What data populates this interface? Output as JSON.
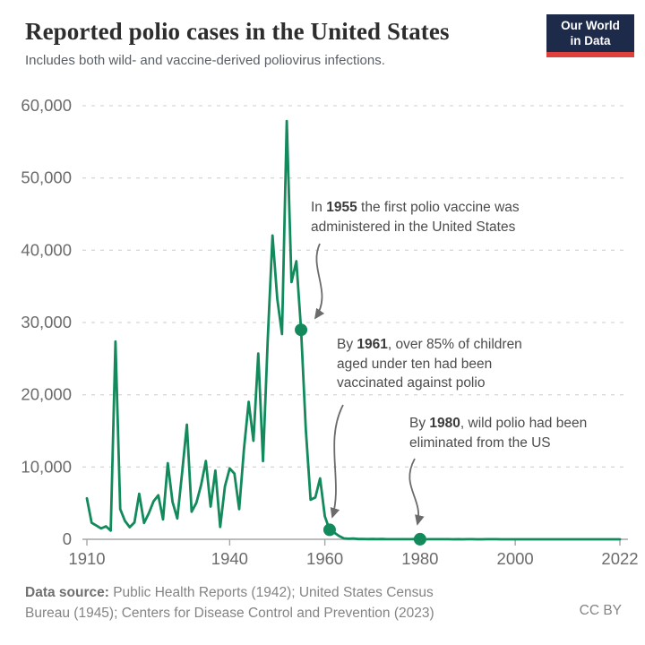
{
  "header": {
    "title": "Reported polio cases in the United States",
    "subtitle": "Includes both wild- and vaccine-derived poliovirus infections.",
    "logo_line1": "Our World",
    "logo_line2": "in Data"
  },
  "chart_data": {
    "type": "line",
    "title": "Reported polio cases in the United States",
    "xlabel": "",
    "ylabel": "",
    "xlim": [
      1910,
      2022
    ],
    "ylim": [
      0,
      60000
    ],
    "grid": "horizontal dashed",
    "legend": "none",
    "line_color": "#128a5c",
    "x": [
      1910,
      1911,
      1912,
      1913,
      1914,
      1915,
      1916,
      1917,
      1918,
      1919,
      1920,
      1921,
      1922,
      1923,
      1924,
      1925,
      1926,
      1927,
      1928,
      1929,
      1930,
      1931,
      1932,
      1933,
      1934,
      1935,
      1936,
      1937,
      1938,
      1939,
      1940,
      1941,
      1942,
      1943,
      1944,
      1945,
      1946,
      1947,
      1948,
      1949,
      1950,
      1951,
      1952,
      1953,
      1954,
      1955,
      1956,
      1957,
      1958,
      1959,
      1960,
      1961,
      1962,
      1963,
      1964,
      1965,
      1966,
      1967,
      1968,
      1969,
      1970,
      1971,
      1972,
      1973,
      1974,
      1975,
      1976,
      1977,
      1978,
      1979,
      1980,
      1981,
      1982,
      1983,
      1984,
      1985,
      1986,
      1987,
      1988,
      1989,
      1990,
      1991,
      1992,
      1993,
      1994,
      1995,
      1996,
      1997,
      1998,
      1999,
      2000,
      2001,
      2002,
      2003,
      2004,
      2005,
      2006,
      2007,
      2008,
      2009,
      2010,
      2011,
      2012,
      2013,
      2014,
      2015,
      2016,
      2017,
      2018,
      2019,
      2020,
      2021,
      2022
    ],
    "values": [
      5662,
      2286,
      1900,
      1500,
      1800,
      1200,
      27363,
      4174,
      2543,
      1672,
      2338,
      6301,
      2255,
      3589,
      5262,
      6104,
      2750,
      10533,
      5169,
      2882,
      9220,
      15872,
      3820,
      5043,
      7510,
      10839,
      4523,
      9514,
      1705,
      7343,
      9804,
      9086,
      4167,
      12450,
      19029,
      13624,
      25698,
      10827,
      27726,
      42033,
      33300,
      28386,
      57879,
      35592,
      38476,
      28985,
      15140,
      5485,
      5787,
      8425,
      3190,
      1312,
      910,
      449,
      122,
      72,
      113,
      41,
      53,
      20,
      33,
      21,
      31,
      8,
      7,
      8,
      14,
      18,
      15,
      34,
      9,
      6,
      8,
      15,
      8,
      7,
      10,
      6,
      9,
      5,
      7,
      10,
      6,
      3,
      8,
      7,
      7,
      6,
      1,
      1,
      0,
      0,
      0,
      0,
      0,
      1,
      0,
      0,
      0,
      1,
      0,
      0,
      0,
      0,
      0,
      0,
      0,
      0,
      0,
      0,
      0,
      0,
      1
    ],
    "y_ticks": [
      {
        "value": 0,
        "label": "0"
      },
      {
        "value": 10000,
        "label": "10,000"
      },
      {
        "value": 20000,
        "label": "20,000"
      },
      {
        "value": 30000,
        "label": "30,000"
      },
      {
        "value": 40000,
        "label": "40,000"
      },
      {
        "value": 50000,
        "label": "50,000"
      },
      {
        "value": 60000,
        "label": "60,000"
      }
    ],
    "x_ticks": [
      {
        "value": 1910,
        "label": "1910"
      },
      {
        "value": 1940,
        "label": "1940"
      },
      {
        "value": 1960,
        "label": "1960"
      },
      {
        "value": 1980,
        "label": "1980"
      },
      {
        "value": 2000,
        "label": "2000"
      },
      {
        "value": 2022,
        "label": "2022"
      }
    ],
    "markers": [
      {
        "year": 1955,
        "value": 28985
      },
      {
        "year": 1961,
        "value": 1312
      },
      {
        "year": 1980,
        "value": 9
      }
    ]
  },
  "annotations": [
    {
      "id": "annotation-1955",
      "lines": [
        [
          {
            "t": "In "
          },
          {
            "t": "1955",
            "b": true
          },
          {
            "t": " the first polio vaccine was"
          }
        ],
        [
          {
            "t": "administered in the United States"
          }
        ]
      ]
    },
    {
      "id": "annotation-1961",
      "lines": [
        [
          {
            "t": "By "
          },
          {
            "t": "1961",
            "b": true
          },
          {
            "t": ", over 85% of children"
          }
        ],
        [
          {
            "t": "aged under ten had been"
          }
        ],
        [
          {
            "t": "vaccinated against polio"
          }
        ]
      ]
    },
    {
      "id": "annotation-1980",
      "lines": [
        [
          {
            "t": "By "
          },
          {
            "t": "1980",
            "b": true
          },
          {
            "t": ", wild polio had been"
          }
        ],
        [
          {
            "t": "eliminated from the US"
          }
        ]
      ]
    }
  ],
  "footer": {
    "source_label": "Data source:",
    "source_line1_rest": " Public Health Reports (1942); United States Census",
    "source_line2": "Bureau (1945); Centers for Disease Control and Prevention (2023)",
    "license": "CC BY"
  },
  "colors": {
    "line": "#128a5c",
    "marker": "#128a5c",
    "grid": "#d8d8d8",
    "axis": "#a6a6a6",
    "tick_label": "#6b6b6b",
    "arrow": "#6b6b6b",
    "logo_bg": "#1d2a49",
    "logo_bar": "#e0403c"
  }
}
